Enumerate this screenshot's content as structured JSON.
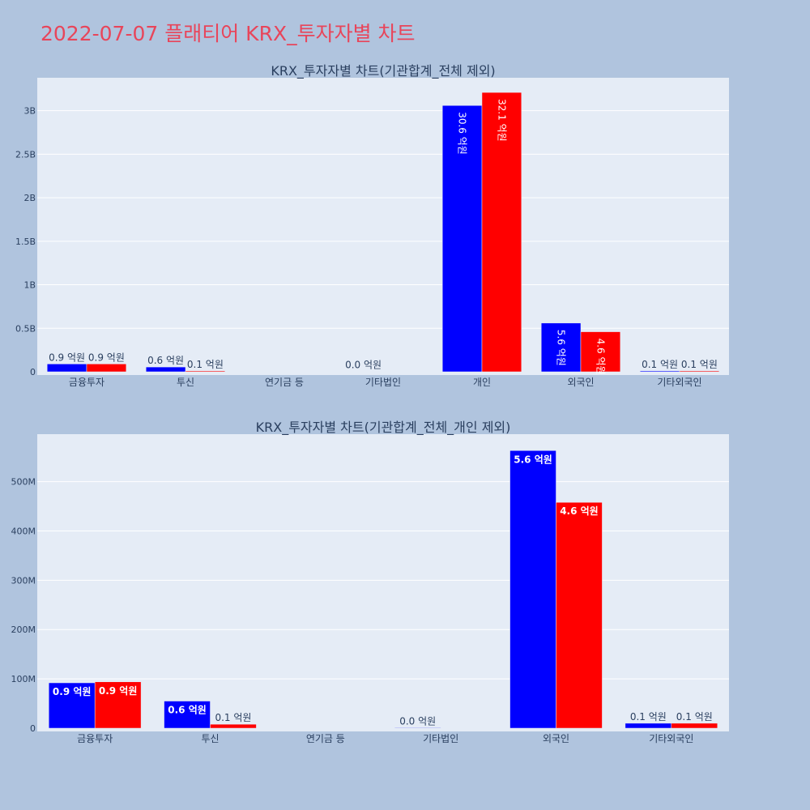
{
  "page": {
    "title": "2022-07-07 플래티어 KRX_투자자별 차트",
    "title_color": "#e8455a",
    "background": "#b0c4de"
  },
  "chart_data": [
    {
      "type": "bar",
      "title": "KRX_투자자별 차트(기관합계_전체 제외)",
      "categories": [
        "금융투자",
        "투신",
        "연기금 등",
        "기타법인",
        "개인",
        "외국인",
        "기타외국인"
      ],
      "series": [
        {
          "color": "#0000ff",
          "values": [
            90000000,
            55000000,
            null,
            2000000,
            3060000000,
            560000000,
            10000000
          ],
          "labels": [
            "0.9 억원",
            "0.6 억원",
            "",
            "0.0 억원",
            "30.6 억원",
            "5.6 억원",
            "0.1 억원"
          ]
        },
        {
          "color": "#ff0000",
          "values": [
            90000000,
            10000000,
            null,
            null,
            3210000000,
            460000000,
            10000000
          ],
          "labels": [
            "0.9 억원",
            "0.1 억원",
            "",
            "",
            "32.1 억원",
            "4.6 억원",
            "0.1 억원"
          ]
        }
      ],
      "y_ticks": [
        0,
        500000000,
        1000000000,
        1500000000,
        2000000000,
        2500000000,
        3000000000
      ],
      "y_tick_labels": [
        "0",
        "0.5B",
        "1B",
        "1.5B",
        "2B",
        "2.5B",
        "3B"
      ],
      "ylim": [
        0,
        3360000000
      ],
      "grid": true,
      "plot_bg": "#e5ecf6"
    },
    {
      "type": "bar",
      "title": "KRX_투자자별 차트(기관합계_전체_개인 제외)",
      "categories": [
        "금융투자",
        "투신",
        "연기금 등",
        "기타법인",
        "외국인",
        "기타외국인"
      ],
      "series": [
        {
          "color": "#0000ff",
          "values": [
            92000000,
            55000000,
            null,
            1000000,
            563000000,
            10000000
          ],
          "labels": [
            "0.9 억원",
            "0.6 억원",
            "",
            "0.0 억원",
            "5.6 억원",
            "0.1 억원"
          ]
        },
        {
          "color": "#ff0000",
          "values": [
            94000000,
            8000000,
            null,
            null,
            458000000,
            10000000
          ],
          "labels": [
            "0.9 억원",
            "0.1 억원",
            "",
            "",
            "4.6 억원",
            "0.1 억원"
          ]
        }
      ],
      "y_ticks": [
        0,
        100000000,
        200000000,
        300000000,
        400000000,
        500000000
      ],
      "y_tick_labels": [
        "0",
        "100M",
        "200M",
        "300M",
        "400M",
        "500M"
      ],
      "ylim": [
        0,
        593000000
      ],
      "grid": true,
      "plot_bg": "#e5ecf6"
    }
  ]
}
